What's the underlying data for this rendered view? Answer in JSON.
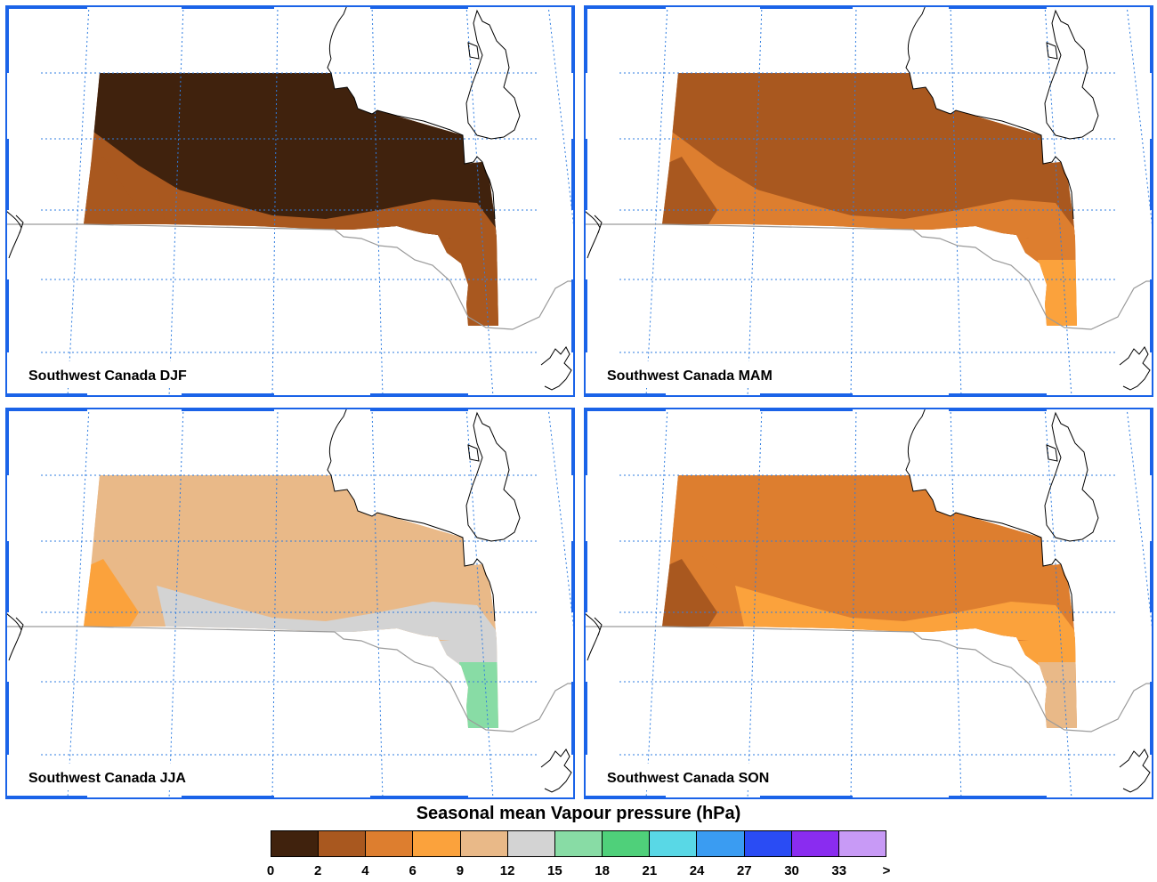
{
  "panels": [
    {
      "id": "djf",
      "label": "Southwest Canada DJF",
      "base": 1,
      "blob_a": 0,
      "blob_b": 1,
      "south": 1,
      "southtip": 1,
      "west": 1
    },
    {
      "id": "mam",
      "label": "Southwest Canada MAM",
      "base": 2,
      "blob_a": 1,
      "blob_b": 2,
      "south": 2,
      "southtip": 3,
      "west": 1
    },
    {
      "id": "jja",
      "label": "Southwest Canada JJA",
      "base": 4,
      "blob_a": 4,
      "blob_b": 5,
      "south": 5,
      "southtip": 6,
      "west": 3
    },
    {
      "id": "son",
      "label": "Southwest Canada SON",
      "base": 2,
      "blob_a": 2,
      "blob_b": 3,
      "south": 3,
      "southtip": 4,
      "west": 1
    }
  ],
  "legend": {
    "title": "Seasonal mean Vapour pressure (hPa)",
    "colors": [
      "#40220d",
      "#a9581f",
      "#dd7e2f",
      "#fba23c",
      "#e9b988",
      "#d3d3d3",
      "#88dca5",
      "#4fd07a",
      "#59d8e6",
      "#3a9cf2",
      "#2a4cf4",
      "#8a2cf0",
      "#c89af6"
    ],
    "ticks": [
      "0",
      "2",
      "4",
      "6",
      "9",
      "12",
      "15",
      "18",
      "21",
      "24",
      "27",
      "30",
      "33",
      ">"
    ]
  },
  "map_style": {
    "frame": "#1a63e8",
    "grid": "#2f7de0",
    "coast": "#000000",
    "border": "#9a9a9a"
  }
}
